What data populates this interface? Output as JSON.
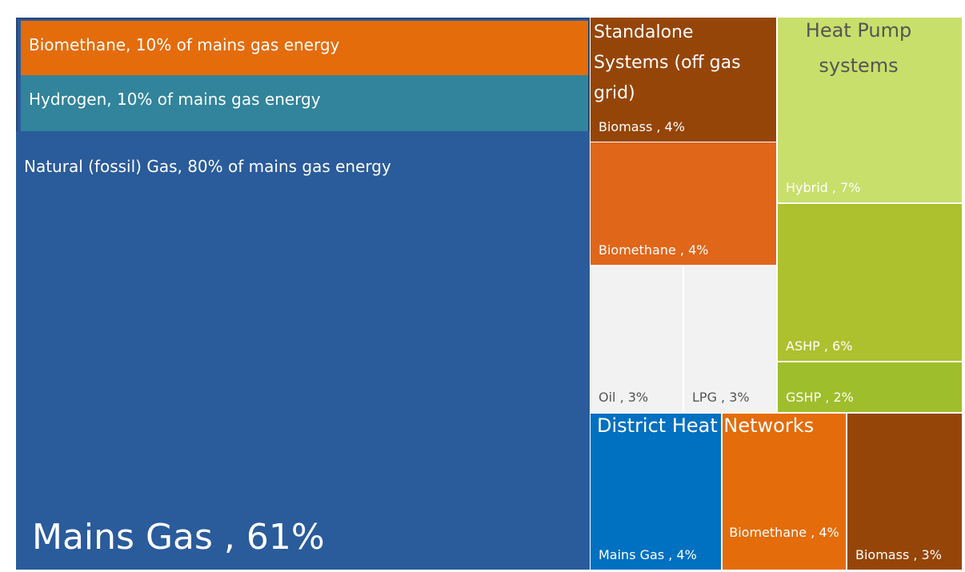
{
  "chart_data": {
    "type": "treemap",
    "groups": [
      {
        "label": "Mains Gas , 61%",
        "value": 61,
        "color": "#2a5b9b",
        "children": [
          {
            "label": "Biomethane, 10% of mains gas energy",
            "value": 10,
            "color": "#e46c0a"
          },
          {
            "label": "Hydrogen, 10% of mains gas energy",
            "value": 10,
            "color": "#31849b"
          },
          {
            "label": "Natural (fossil) Gas, 80% of mains gas energy",
            "value": 80,
            "color": "#2a5b9b"
          }
        ]
      },
      {
        "name": "Standalone Systems (off gas grid)",
        "children": [
          {
            "label": "Biomass , 4%",
            "value": 4,
            "color": "#964508"
          },
          {
            "label": "Biomethane , 4%",
            "value": 4,
            "color": "#e0661a"
          },
          {
            "label": "Oil , 3%",
            "value": 3,
            "color": "#f2f2f2"
          },
          {
            "label": "LPG , 3%",
            "value": 3,
            "color": "#f2f2f2"
          }
        ]
      },
      {
        "name": "Heat Pump systems",
        "children": [
          {
            "label": "Hybrid , 7%",
            "value": 7,
            "color": "#c8df6b"
          },
          {
            "label": "ASHP , 6%",
            "value": 6,
            "color": "#adc12e"
          },
          {
            "label": "GSHP , 2%",
            "value": 2,
            "color": "#9fbe2c"
          }
        ]
      },
      {
        "name": "District Heat Networks",
        "children": [
          {
            "label": "Mains Gas , 4%",
            "value": 4,
            "color": "#0070c0"
          },
          {
            "label": "Biomethane , 4%",
            "value": 4,
            "color": "#e46c0a"
          },
          {
            "label": "Biomass , 3%",
            "value": 3,
            "color": "#964508"
          }
        ]
      }
    ]
  }
}
